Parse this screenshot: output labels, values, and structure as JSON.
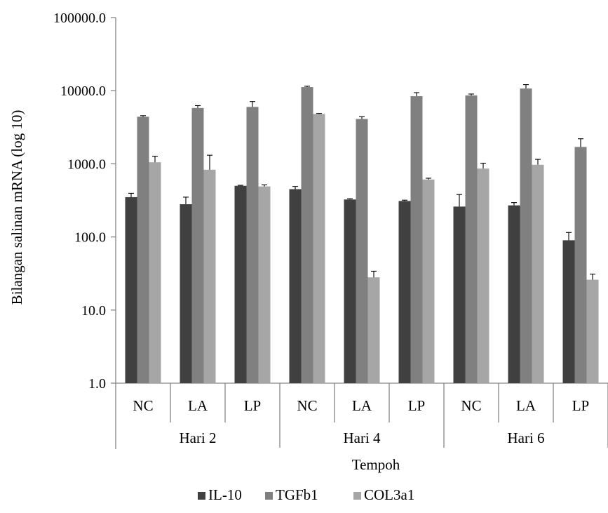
{
  "chart_data": {
    "type": "bar",
    "xlabel": "Tempoh",
    "ylabel": "Bilangan salinan mRNA (log 10)",
    "yscale": "log",
    "ylim": [
      1,
      100000
    ],
    "yticks": [
      "1.0",
      "10.0",
      "100.0",
      "1000.0",
      "10000.0",
      "100000.0"
    ],
    "grid": false,
    "legend_position": "bottom",
    "groups": [
      {
        "label": "Hari 2",
        "categories": [
          "NC",
          "LA",
          "LP"
        ]
      },
      {
        "label": "Hari 4",
        "categories": [
          "NC",
          "LA",
          "LP"
        ]
      },
      {
        "label": "Hari 6",
        "categories": [
          "NC",
          "LA",
          "LP"
        ]
      }
    ],
    "categories": [
      "NC",
      "LA",
      "LP",
      "NC",
      "LA",
      "LP",
      "NC",
      "LA",
      "LP"
    ],
    "series": [
      {
        "name": "IL-10",
        "color": "#404040",
        "values": [
          350,
          280,
          500,
          450,
          325,
          310,
          260,
          270,
          90
        ],
        "errors": [
          45,
          70,
          8,
          40,
          8,
          8,
          120,
          25,
          25
        ]
      },
      {
        "name": "TGFb1",
        "color": "#808080",
        "values": [
          4400,
          5800,
          6000,
          11200,
          4100,
          8400,
          8600,
          10700,
          1700
        ],
        "errors": [
          150,
          450,
          1100,
          300,
          300,
          1000,
          400,
          1400,
          500
        ]
      },
      {
        "name": "COL3a1",
        "color": "#a6a6a6",
        "values": [
          1050,
          830,
          490,
          4800,
          28,
          610,
          860,
          970,
          26
        ],
        "errors": [
          220,
          480,
          25,
          80,
          6,
          25,
          160,
          180,
          5
        ]
      }
    ]
  }
}
